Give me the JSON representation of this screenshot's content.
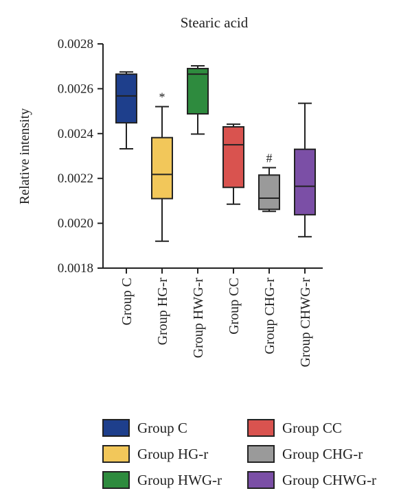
{
  "chart_data": {
    "type": "box",
    "title": "Stearic acid",
    "xlabel": "",
    "ylabel": "Relative intensity",
    "ylim": [
      0.0018,
      0.0028
    ],
    "yticks": [
      "0.0018",
      "0.0020",
      "0.0022",
      "0.0024",
      "0.0026",
      "0.0028"
    ],
    "grid": false,
    "legend_position": "bottom",
    "categories": [
      "Group C",
      "Group HG-r",
      "Group HWG-r",
      "Group CC",
      "Group CHG-r",
      "Group CHWG-r"
    ],
    "series": [
      {
        "name": "Group C",
        "min": 0.002332,
        "q1": 0.002448,
        "median": 0.002568,
        "q3": 0.002665,
        "max": 0.002675,
        "color": "#1e3f8c",
        "annotation": ""
      },
      {
        "name": "Group HG-r",
        "min": 0.00192,
        "q1": 0.00211,
        "median": 0.002218,
        "q3": 0.002382,
        "max": 0.00252,
        "color": "#f2c75a",
        "annotation": "*"
      },
      {
        "name": "Group HWG-r",
        "min": 0.002398,
        "q1": 0.002488,
        "median": 0.002665,
        "q3": 0.00269,
        "max": 0.002702,
        "color": "#2e8b3e",
        "annotation": ""
      },
      {
        "name": "Group CC",
        "min": 0.002085,
        "q1": 0.00216,
        "median": 0.00235,
        "q3": 0.00243,
        "max": 0.002442,
        "color": "#d9534f",
        "annotation": ""
      },
      {
        "name": "Group CHG-r",
        "min": 0.002053,
        "q1": 0.002062,
        "median": 0.002112,
        "q3": 0.002215,
        "max": 0.002248,
        "color": "#9a9a9a",
        "annotation": "#"
      },
      {
        "name": "Group CHWG-r",
        "min": 0.00194,
        "q1": 0.002038,
        "median": 0.002165,
        "q3": 0.00233,
        "max": 0.002535,
        "color": "#7b4fa6",
        "annotation": ""
      }
    ]
  }
}
